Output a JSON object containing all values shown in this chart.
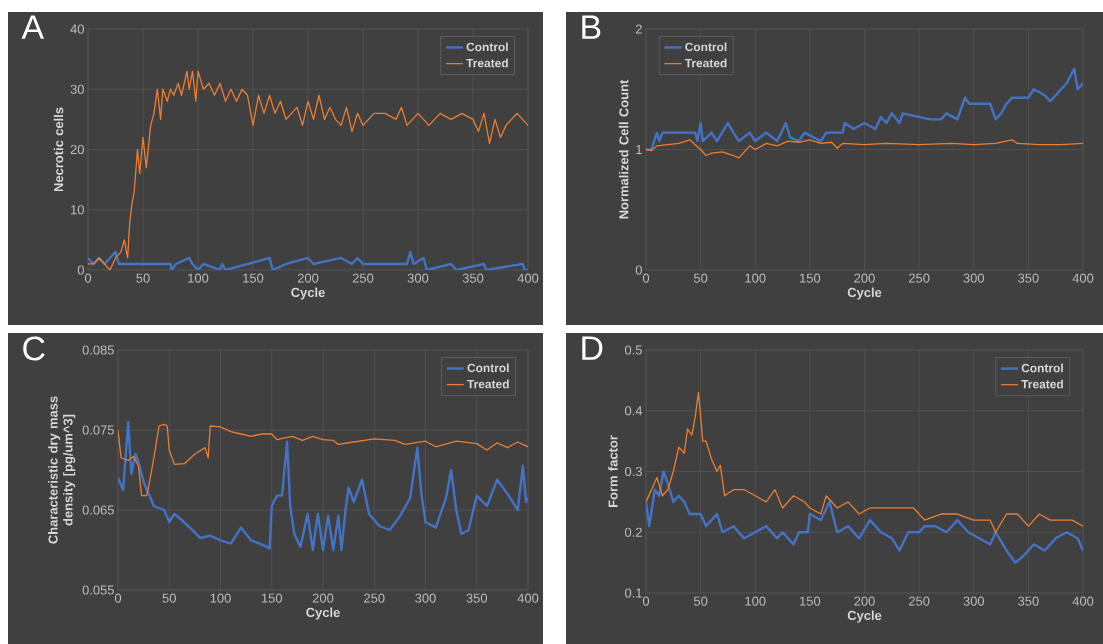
{
  "chart_data": [
    {
      "type": "line",
      "title": "A",
      "xlabel": "Cycle",
      "ylabel": "Necrotic cells",
      "xlim": [
        0,
        400
      ],
      "xticks": [
        0,
        50,
        100,
        150,
        200,
        250,
        300,
        350,
        400
      ],
      "ylim": [
        0,
        40
      ],
      "yticks": [
        0,
        10,
        20,
        30,
        40
      ],
      "grid": true,
      "legend": "top right",
      "series": [
        {
          "name": "Control",
          "color": "#4472c4",
          "x": [
            0,
            5,
            10,
            15,
            25,
            28,
            75,
            76,
            80,
            92,
            95,
            100,
            105,
            120,
            122,
            125,
            165,
            168,
            180,
            200,
            205,
            230,
            240,
            245,
            250,
            290,
            293,
            296,
            305,
            308,
            330,
            335,
            360,
            362,
            395,
            397,
            400
          ],
          "values": [
            2,
            1,
            2,
            1,
            3,
            1,
            1,
            0,
            1,
            2,
            1,
            0,
            1,
            0,
            1,
            0,
            2,
            0,
            1,
            2,
            1,
            2,
            1,
            2,
            1,
            1,
            3,
            1,
            2,
            0,
            1,
            0,
            1,
            0,
            1,
            0,
            0
          ]
        },
        {
          "name": "Treated",
          "color": "#ed7d31",
          "x": [
            0,
            5,
            10,
            15,
            20,
            25,
            30,
            33,
            36,
            38,
            40,
            42,
            45,
            47,
            50,
            53,
            57,
            60,
            63,
            66,
            68,
            72,
            75,
            78,
            82,
            85,
            90,
            92,
            95,
            98,
            100,
            105,
            110,
            115,
            120,
            125,
            130,
            135,
            140,
            145,
            150,
            155,
            160,
            165,
            170,
            175,
            180,
            190,
            195,
            200,
            205,
            210,
            215,
            220,
            225,
            230,
            235,
            240,
            245,
            250,
            260,
            270,
            280,
            285,
            290,
            300,
            305,
            310,
            320,
            330,
            340,
            350,
            355,
            360,
            365,
            370,
            375,
            380,
            390,
            395,
            400
          ],
          "values": [
            1,
            1,
            2,
            1,
            0,
            2,
            3,
            5,
            2,
            8,
            11,
            13,
            20,
            16,
            22,
            17,
            24,
            26,
            30,
            25,
            30,
            28,
            30,
            29,
            31,
            29,
            33,
            30,
            33,
            28,
            33,
            30,
            31,
            29,
            31,
            28,
            30,
            28,
            30,
            29,
            24,
            29,
            26,
            29,
            26,
            28,
            25,
            27,
            24,
            28,
            25,
            29,
            25,
            27,
            25,
            24,
            27,
            23,
            26,
            24,
            26,
            26,
            25,
            27,
            24,
            26,
            25,
            24,
            26,
            25,
            26,
            25,
            23,
            26,
            21,
            25,
            22,
            24,
            26,
            25,
            24
          ]
        }
      ]
    },
    {
      "type": "line",
      "title": "B",
      "xlabel": "Cycle",
      "ylabel": "Normalized Cell Count",
      "xlim": [
        0,
        400
      ],
      "xticks": [
        0,
        50,
        100,
        150,
        200,
        250,
        300,
        350,
        400
      ],
      "ylim": [
        0,
        2
      ],
      "yticks": [
        0,
        1,
        2
      ],
      "grid": true,
      "legend": "top left",
      "series": [
        {
          "name": "Control",
          "color": "#4472c4",
          "x": [
            0,
            5,
            10,
            12,
            15,
            45,
            47,
            50,
            52,
            60,
            65,
            75,
            80,
            85,
            95,
            100,
            110,
            120,
            128,
            132,
            140,
            145,
            160,
            165,
            180,
            182,
            190,
            200,
            210,
            215,
            220,
            225,
            232,
            235,
            260,
            270,
            275,
            285,
            292,
            296,
            315,
            320,
            325,
            330,
            335,
            350,
            355,
            365,
            370,
            380,
            385,
            392,
            395,
            400
          ],
          "values": [
            1.0,
            1.0,
            1.14,
            1.07,
            1.14,
            1.14,
            1.07,
            1.22,
            1.07,
            1.14,
            1.07,
            1.22,
            1.14,
            1.07,
            1.14,
            1.07,
            1.14,
            1.07,
            1.22,
            1.1,
            1.07,
            1.14,
            1.07,
            1.14,
            1.14,
            1.22,
            1.17,
            1.22,
            1.17,
            1.27,
            1.22,
            1.3,
            1.22,
            1.3,
            1.25,
            1.25,
            1.3,
            1.25,
            1.43,
            1.38,
            1.38,
            1.25,
            1.3,
            1.38,
            1.43,
            1.43,
            1.5,
            1.45,
            1.4,
            1.5,
            1.55,
            1.67,
            1.5,
            1.55
          ]
        },
        {
          "name": "Treated",
          "color": "#ed7d31",
          "x": [
            0,
            5,
            10,
            20,
            30,
            40,
            45,
            50,
            55,
            60,
            70,
            80,
            85,
            90,
            95,
            100,
            110,
            120,
            130,
            140,
            150,
            160,
            170,
            175,
            180,
            200,
            220,
            250,
            280,
            300,
            320,
            335,
            340,
            360,
            380,
            400
          ],
          "values": [
            1.0,
            0.99,
            1.03,
            1.04,
            1.05,
            1.08,
            1.04,
            1.0,
            0.95,
            0.97,
            0.98,
            0.95,
            0.93,
            0.98,
            1.03,
            1.0,
            1.05,
            1.03,
            1.07,
            1.06,
            1.08,
            1.05,
            1.06,
            1.01,
            1.05,
            1.04,
            1.05,
            1.04,
            1.05,
            1.04,
            1.05,
            1.08,
            1.05,
            1.04,
            1.04,
            1.05
          ]
        }
      ]
    },
    {
      "type": "line",
      "title": "C",
      "xlabel": "Cycle",
      "ylabel": "Characteristic dry mass density [pg/um^3]",
      "xlim": [
        0,
        400
      ],
      "xticks": [
        0,
        50,
        100,
        150,
        200,
        250,
        300,
        350,
        400
      ],
      "ylim": [
        0.055,
        0.085
      ],
      "yticks": [
        0.055,
        0.065,
        0.075,
        0.085
      ],
      "grid": true,
      "legend": "top right",
      "series": [
        {
          "name": "Control",
          "color": "#4472c4",
          "x": [
            0,
            5,
            10,
            13,
            17,
            20,
            25,
            30,
            35,
            45,
            50,
            55,
            60,
            70,
            75,
            80,
            90,
            100,
            110,
            120,
            130,
            140,
            148,
            150,
            155,
            160,
            165,
            168,
            172,
            178,
            185,
            190,
            195,
            200,
            205,
            210,
            215,
            218,
            222,
            225,
            230,
            238,
            245,
            255,
            265,
            275,
            285,
            292,
            296,
            300,
            310,
            320,
            325,
            330,
            335,
            342,
            350,
            360,
            370,
            380,
            390,
            395,
            398,
            400
          ],
          "values": [
            0.069,
            0.0675,
            0.076,
            0.0695,
            0.072,
            0.071,
            0.0685,
            0.067,
            0.0655,
            0.065,
            0.0635,
            0.0645,
            0.064,
            0.0628,
            0.0622,
            0.0615,
            0.0618,
            0.0612,
            0.0608,
            0.0628,
            0.0612,
            0.0607,
            0.0602,
            0.0655,
            0.0668,
            0.0668,
            0.0735,
            0.0655,
            0.062,
            0.0604,
            0.0645,
            0.06,
            0.0645,
            0.06,
            0.0643,
            0.06,
            0.0643,
            0.06,
            0.065,
            0.0678,
            0.066,
            0.0688,
            0.0645,
            0.063,
            0.0625,
            0.0642,
            0.0665,
            0.0728,
            0.067,
            0.0635,
            0.0628,
            0.0665,
            0.07,
            0.065,
            0.062,
            0.0625,
            0.0668,
            0.0655,
            0.0688,
            0.067,
            0.065,
            0.0705,
            0.066,
            0.0665
          ]
        },
        {
          "name": "Treated",
          "color": "#ed7d31",
          "x": [
            0,
            3,
            10,
            15,
            20,
            23,
            28,
            30,
            35,
            40,
            45,
            48,
            50,
            55,
            65,
            75,
            85,
            88,
            90,
            100,
            110,
            120,
            130,
            140,
            150,
            155,
            170,
            180,
            190,
            200,
            210,
            215,
            230,
            250,
            270,
            280,
            300,
            310,
            330,
            350,
            360,
            370,
            380,
            390,
            400
          ],
          "values": [
            0.075,
            0.0715,
            0.0712,
            0.0717,
            0.0705,
            0.0668,
            0.0668,
            0.068,
            0.0715,
            0.0755,
            0.0757,
            0.0755,
            0.0725,
            0.0707,
            0.0708,
            0.072,
            0.0728,
            0.0715,
            0.0755,
            0.0754,
            0.0748,
            0.0745,
            0.0742,
            0.0745,
            0.0745,
            0.0738,
            0.0742,
            0.0737,
            0.0742,
            0.0738,
            0.0737,
            0.0732,
            0.0735,
            0.0739,
            0.0737,
            0.0732,
            0.0736,
            0.0729,
            0.0736,
            0.0733,
            0.0725,
            0.0734,
            0.0728,
            0.0735,
            0.0729
          ]
        }
      ]
    },
    {
      "type": "line",
      "title": "D",
      "xlabel": "Cycle",
      "ylabel": "Form factor",
      "xlim": [
        0,
        400
      ],
      "xticks": [
        0,
        50,
        100,
        150,
        200,
        250,
        300,
        350,
        400
      ],
      "ylim": [
        0.1,
        0.5
      ],
      "yticks": [
        0.1,
        0.2,
        0.3,
        0.4,
        0.5
      ],
      "grid": true,
      "legend": "top right",
      "series": [
        {
          "name": "Control",
          "color": "#4472c4",
          "x": [
            0,
            3,
            8,
            12,
            16,
            20,
            25,
            30,
            35,
            40,
            50,
            55,
            60,
            65,
            70,
            80,
            90,
            100,
            110,
            120,
            125,
            135,
            140,
            148,
            150,
            160,
            168,
            175,
            185,
            195,
            205,
            215,
            225,
            232,
            240,
            250,
            255,
            265,
            275,
            285,
            295,
            305,
            315,
            320,
            330,
            338,
            345,
            355,
            365,
            375,
            385,
            395,
            400
          ],
          "values": [
            0.25,
            0.21,
            0.27,
            0.26,
            0.3,
            0.28,
            0.25,
            0.26,
            0.25,
            0.23,
            0.23,
            0.21,
            0.22,
            0.23,
            0.2,
            0.21,
            0.19,
            0.2,
            0.21,
            0.19,
            0.2,
            0.18,
            0.2,
            0.2,
            0.23,
            0.22,
            0.25,
            0.2,
            0.21,
            0.19,
            0.22,
            0.2,
            0.19,
            0.17,
            0.2,
            0.2,
            0.21,
            0.21,
            0.2,
            0.22,
            0.2,
            0.19,
            0.18,
            0.2,
            0.17,
            0.15,
            0.16,
            0.18,
            0.17,
            0.19,
            0.2,
            0.19,
            0.17
          ]
        },
        {
          "name": "Treated",
          "color": "#ed7d31",
          "x": [
            0,
            5,
            10,
            15,
            20,
            25,
            30,
            35,
            38,
            42,
            45,
            48,
            52,
            55,
            60,
            65,
            68,
            72,
            80,
            90,
            100,
            110,
            118,
            125,
            135,
            145,
            150,
            160,
            165,
            175,
            185,
            195,
            205,
            215,
            230,
            245,
            255,
            270,
            285,
            300,
            315,
            320,
            330,
            340,
            350,
            360,
            370,
            380,
            390,
            400
          ],
          "values": [
            0.25,
            0.27,
            0.29,
            0.26,
            0.27,
            0.3,
            0.34,
            0.33,
            0.37,
            0.36,
            0.39,
            0.43,
            0.35,
            0.35,
            0.32,
            0.3,
            0.31,
            0.26,
            0.27,
            0.27,
            0.26,
            0.25,
            0.27,
            0.24,
            0.26,
            0.25,
            0.24,
            0.23,
            0.26,
            0.24,
            0.25,
            0.23,
            0.24,
            0.24,
            0.24,
            0.24,
            0.22,
            0.23,
            0.23,
            0.22,
            0.22,
            0.2,
            0.23,
            0.23,
            0.21,
            0.23,
            0.22,
            0.22,
            0.22,
            0.21
          ]
        }
      ]
    }
  ]
}
